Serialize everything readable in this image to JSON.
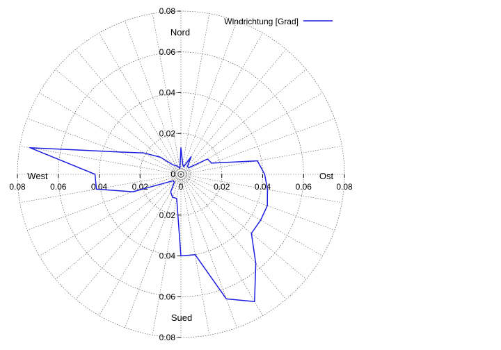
{
  "chart_data": {
    "type": "line",
    "subtype": "polar",
    "title": "",
    "legend": {
      "position": "top-right",
      "entries": [
        "Windrichtung [Grad]"
      ]
    },
    "series": [
      {
        "name": "Windrichtung [Grad]",
        "color": "#1c1ce0",
        "angle_unit": "degrees",
        "angle_reference": "0 = north, clockwise",
        "theta": [
          0,
          10,
          20,
          30,
          40,
          50,
          60,
          70,
          80,
          90,
          100,
          110,
          120,
          130,
          140,
          150,
          160,
          170,
          180,
          190,
          200,
          210,
          220,
          230,
          240,
          250,
          260,
          270,
          280,
          290,
          300,
          310,
          320,
          330,
          340,
          350
        ],
        "r": [
          0.013,
          0.005,
          0.004,
          0.01,
          0.005,
          0.005,
          0.015,
          0.016,
          0.038,
          0.041,
          0.043,
          0.045,
          0.045,
          0.045,
          0.057,
          0.072,
          0.065,
          0.04,
          0.04,
          0.012,
          0.012,
          0.01,
          0.005,
          0.005,
          0.008,
          0.025,
          0.042,
          0.042,
          0.075,
          0.032,
          0.021,
          0.013,
          0.006,
          0.005,
          0.004,
          0.003
        ]
      }
    ],
    "radial_axis": {
      "range": [
        0,
        0.08
      ],
      "ticks": [
        "0",
        "0.02",
        "0.04",
        "0.06",
        "0.08"
      ]
    },
    "angular_grid": {
      "step_degrees": 10
    },
    "direction_labels": {
      "north": "Nord",
      "east": "Ost",
      "south": "Sued",
      "west": "West"
    },
    "grid": true
  }
}
